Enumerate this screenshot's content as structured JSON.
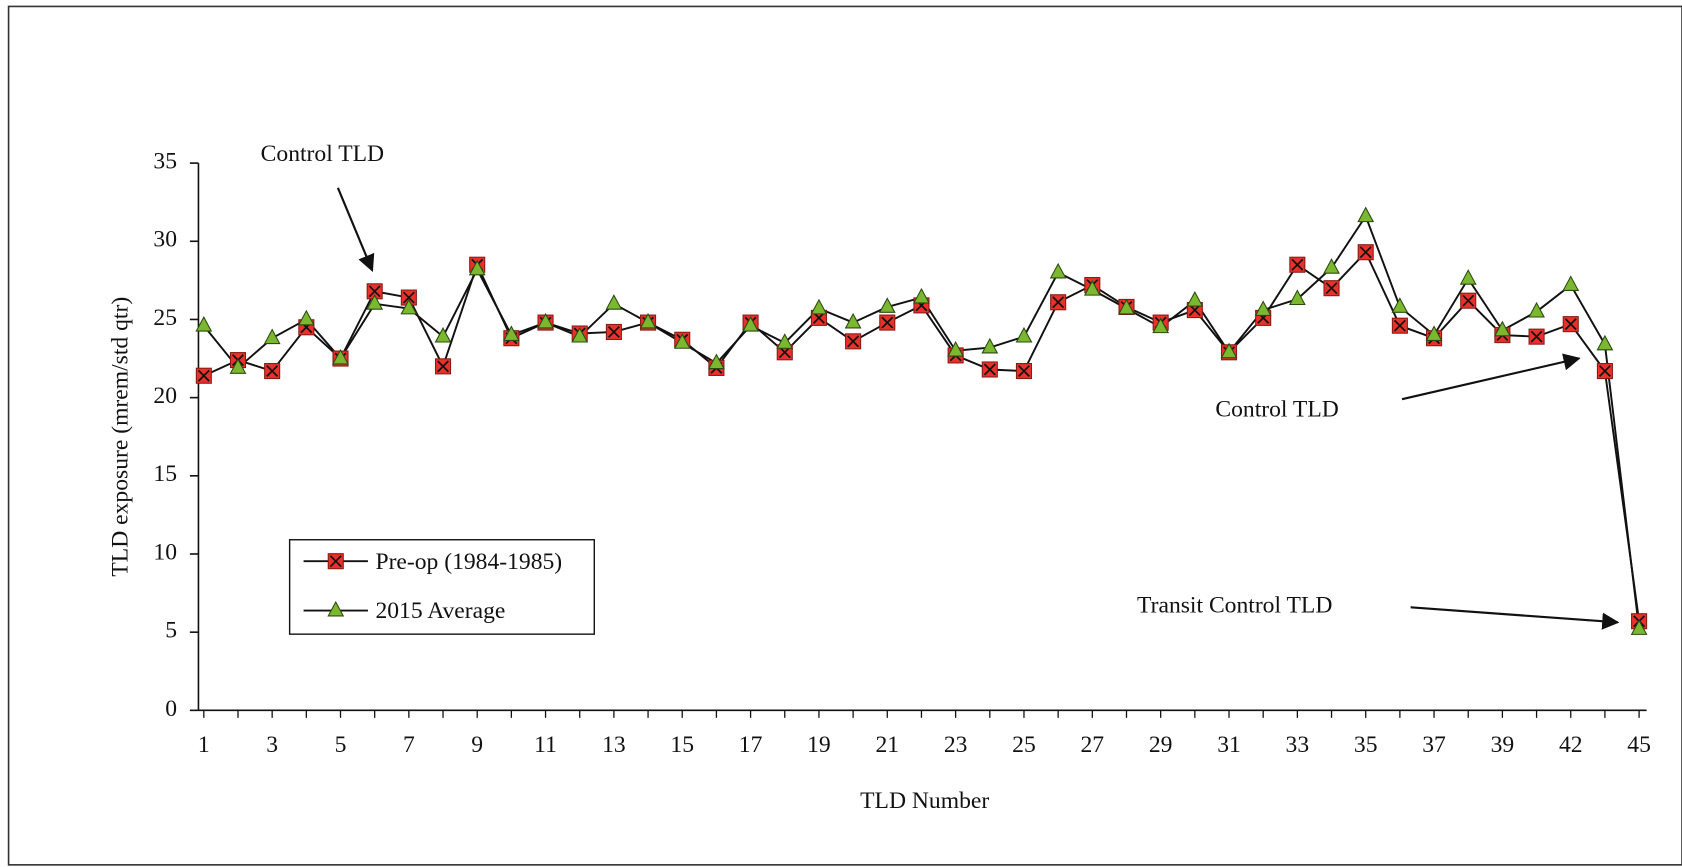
{
  "chart_data": {
    "type": "line",
    "x_label": "TLD Number",
    "y_label": "TLD exposure (mrem/std qtr)",
    "categories": [
      "1",
      null,
      "3",
      null,
      "5",
      null,
      "7",
      null,
      "9",
      null,
      "11",
      null,
      "13",
      null,
      "15",
      null,
      "17",
      null,
      "19",
      null,
      "21",
      null,
      "23",
      null,
      "25",
      null,
      "27",
      null,
      "29",
      null,
      "31",
      null,
      "33",
      null,
      "35",
      null,
      "37",
      null,
      "39",
      null,
      "42",
      null,
      "45"
    ],
    "series": [
      {
        "name": "Pre-op (1984-1985)",
        "color": "#e8312a",
        "marker": "square",
        "values": [
          21.4,
          22.4,
          21.7,
          24.5,
          22.5,
          26.8,
          26.4,
          22.0,
          28.5,
          23.8,
          24.8,
          24.1,
          24.2,
          24.8,
          23.7,
          21.9,
          24.8,
          22.9,
          25.1,
          23.6,
          24.8,
          25.9,
          22.7,
          21.8,
          21.7,
          26.1,
          27.2,
          25.8,
          24.8,
          25.6,
          22.9,
          25.1,
          28.5,
          27.0,
          29.3,
          24.6,
          23.8,
          26.2,
          24.0,
          23.9,
          24.7,
          21.7,
          5.7
        ]
      },
      {
        "name": "2015 Average",
        "color": "#7cb82f",
        "marker": "triangle",
        "values": [
          24.6,
          21.9,
          23.8,
          25.0,
          22.5,
          26.0,
          25.7,
          23.9,
          28.2,
          24.0,
          24.8,
          23.9,
          26.0,
          24.8,
          23.5,
          22.2,
          24.6,
          23.5,
          25.7,
          24.8,
          25.8,
          26.4,
          23.0,
          23.2,
          23.9,
          28.0,
          26.9,
          25.7,
          24.5,
          26.2,
          22.9,
          25.6,
          26.3,
          28.3,
          31.6,
          25.8,
          24.0,
          27.6,
          24.3,
          25.5,
          27.2,
          23.4,
          5.2
        ]
      }
    ],
    "ylim": [
      0,
      35
    ],
    "yticks": [
      0,
      5,
      10,
      15,
      20,
      25,
      30,
      35
    ],
    "legend": "lower left",
    "annotations": [
      {
        "text": "Control TLD"
      },
      {
        "text": "Control TLD"
      },
      {
        "text": "Transit Control TLD"
      }
    ]
  }
}
